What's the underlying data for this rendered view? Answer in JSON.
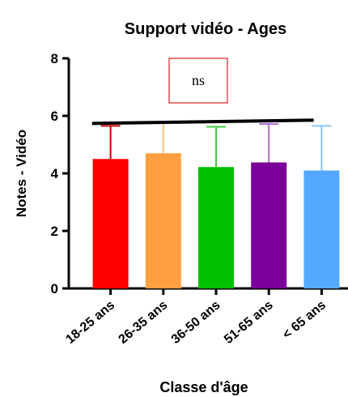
{
  "chart_data": {
    "type": "bar",
    "title": "Support vidéo - Ages",
    "xlabel": "Classe d'âge",
    "ylabel": "Notes - Vidéo",
    "categories": [
      "18-25 ans",
      "26-35 ans",
      "36-50 ans",
      "51-65 ans",
      "< 65 ans"
    ],
    "values": [
      4.5,
      4.7,
      4.22,
      4.38,
      4.1
    ],
    "error_upper": [
      5.65,
      5.8,
      5.62,
      5.72,
      5.65
    ],
    "colors": [
      "#ff0000",
      "#ff9f3f",
      "#00c000",
      "#7b0099",
      "#55a8ff"
    ],
    "error_colors": [
      "#cc0000",
      "#ffbf80",
      "#44cc44",
      "#b070d0",
      "#88c4ff"
    ],
    "ylim": [
      0,
      8
    ],
    "yticks": [
      0,
      2,
      4,
      6,
      8
    ],
    "grid": false,
    "significance": {
      "label": "ns",
      "y": 5.85
    }
  }
}
